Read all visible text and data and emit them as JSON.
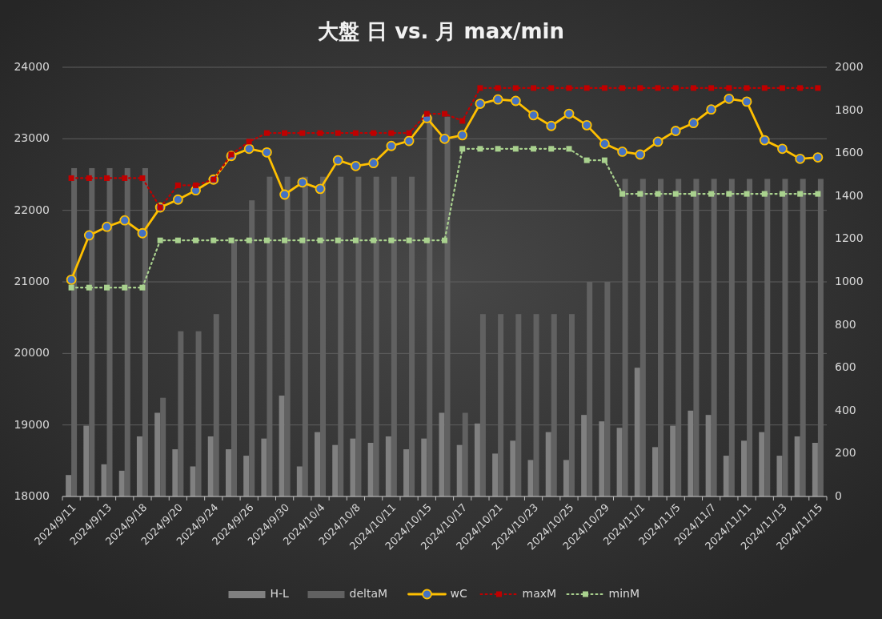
{
  "chart_data": {
    "type": "line",
    "title": "大盤 日 vs. 月 max/min",
    "categories": [
      "2024/9/11",
      null,
      "2024/9/13",
      null,
      "2024/9/18",
      null,
      "2024/9/20",
      null,
      "2024/9/24",
      null,
      "2024/9/26",
      null,
      "2024/9/30",
      null,
      "2024/10/4",
      null,
      "2024/10/8",
      null,
      "2024/10/11",
      null,
      "2024/10/15",
      null,
      "2024/10/17",
      null,
      "2024/10/21",
      null,
      "2024/10/23",
      null,
      "2024/10/25",
      null,
      "2024/10/29",
      null,
      "2024/11/1",
      null,
      "2024/11/5",
      null,
      "2024/11/7",
      null,
      "2024/11/11",
      null,
      "2024/11/13",
      null,
      "2024/11/15"
    ],
    "series": [
      {
        "name": "H-L",
        "type": "bar",
        "axis": "y2",
        "color": "#808080",
        "values": [
          100,
          330,
          150,
          120,
          280,
          390,
          220,
          140,
          280,
          220,
          190,
          270,
          470,
          140,
          300,
          240,
          270,
          250,
          280,
          220,
          270,
          390,
          240,
          340,
          200,
          260,
          170,
          300,
          170,
          380,
          350,
          320,
          600,
          230,
          330,
          400,
          380,
          190,
          260,
          300,
          190,
          280,
          250
        ]
      },
      {
        "name": "deltaM",
        "type": "bar",
        "axis": "y2",
        "color": "#616161",
        "values": [
          1530,
          1530,
          1530,
          1530,
          1530,
          460,
          770,
          770,
          850,
          1190,
          1380,
          1490,
          1490,
          1490,
          1490,
          1490,
          1490,
          1490,
          1490,
          1490,
          1770,
          1770,
          390,
          850,
          850,
          850,
          850,
          850,
          850,
          1000,
          1000,
          1480,
          1480,
          1480,
          1480,
          1480,
          1480,
          1480,
          1480,
          1480,
          1480,
          1480,
          1480
        ]
      },
      {
        "name": "wC",
        "axis": "y",
        "color": "#ffc000",
        "marker": "circle",
        "line_style": "solid",
        "values": [
          21030,
          21650,
          21770,
          21860,
          21680,
          22040,
          22150,
          22280,
          22430,
          22760,
          22860,
          22810,
          22220,
          22390,
          22300,
          22700,
          22620,
          22660,
          22900,
          22970,
          23290,
          23000,
          23050,
          23490,
          23550,
          23530,
          23330,
          23180,
          23350,
          23190,
          22930,
          22820,
          22780,
          22960,
          23110,
          23220,
          23410,
          23560,
          23520,
          22980,
          22860,
          22720,
          22740
        ]
      },
      {
        "name": "maxM",
        "axis": "y",
        "color": "#c00000",
        "marker": "square",
        "line_style": "dotted",
        "values": [
          22450,
          22450,
          22450,
          22450,
          22450,
          22040,
          22350,
          22350,
          22430,
          22780,
          22960,
          23080,
          23080,
          23080,
          23080,
          23080,
          23080,
          23080,
          23080,
          23080,
          23350,
          23350,
          23250,
          23710,
          23710,
          23710,
          23710,
          23710,
          23710,
          23710,
          23710,
          23710,
          23710,
          23710,
          23710,
          23710,
          23710,
          23710,
          23710,
          23710,
          23710,
          23710,
          23710
        ]
      },
      {
        "name": "minM",
        "axis": "y",
        "color": "#a9d18e",
        "marker": "square",
        "line_style": "dotted",
        "values": [
          20920,
          20920,
          20920,
          20920,
          20920,
          21580,
          21580,
          21580,
          21580,
          21580,
          21580,
          21580,
          21580,
          21580,
          21580,
          21580,
          21580,
          21580,
          21580,
          21580,
          21580,
          21580,
          22860,
          22860,
          22860,
          22860,
          22860,
          22860,
          22860,
          22700,
          22700,
          22230,
          22230,
          22230,
          22230,
          22230,
          22230,
          22230,
          22230,
          22230,
          22230,
          22230,
          22230
        ]
      }
    ],
    "ylim": [
      18000,
      24000
    ],
    "yticks": [
      18000,
      19000,
      20000,
      21000,
      22000,
      23000,
      24000
    ],
    "y2lim": [
      0,
      2000
    ],
    "y2ticks": [
      0,
      200,
      400,
      600,
      800,
      1000,
      1200,
      1400,
      1600,
      1800,
      2000
    ],
    "grid": "y",
    "legend": "bottom"
  }
}
